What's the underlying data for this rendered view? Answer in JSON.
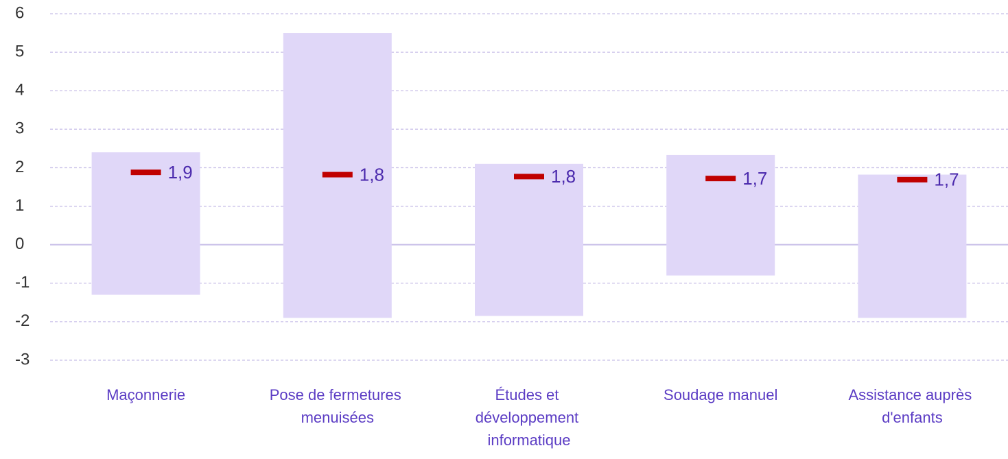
{
  "chart_data": {
    "type": "floating_bar",
    "categories": [
      "Maçonnerie",
      "Pose de fermetures menuisées",
      "Études et développement informatique",
      "Soudage manuel",
      "Assistance auprès d'enfants"
    ],
    "low": [
      -1.3,
      -1.9,
      -1.85,
      -0.8,
      -1.9
    ],
    "high": [
      2.4,
      5.5,
      2.1,
      2.33,
      1.82
    ],
    "values": [
      1.88,
      1.82,
      1.77,
      1.72,
      1.69
    ],
    "value_labels": [
      "1,9",
      "1,8",
      "1,8",
      "1,7",
      "1,7"
    ],
    "bar_color": "#e0d7f8",
    "marker_color": "#c00000",
    "ylim": [
      -3,
      6
    ],
    "yticks": [
      -3,
      -2,
      -1,
      0,
      1,
      2,
      3,
      4,
      5,
      6
    ],
    "grid": true
  }
}
